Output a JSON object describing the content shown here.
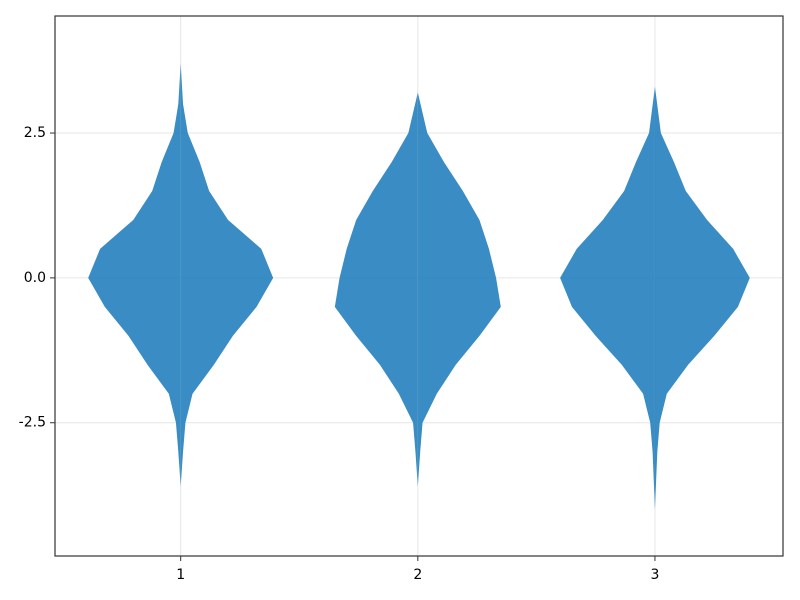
{
  "chart_data": {
    "type": "violin",
    "color": "#2e86c1",
    "grid": true,
    "xlim": [
      0.47,
      3.54
    ],
    "ylim": [
      -4.8,
      4.52
    ],
    "xticks": [
      1,
      2,
      3
    ],
    "yticks": [
      -2.5,
      {
        "value": 0,
        "label": "0.0"
      },
      2.5
    ],
    "series": [
      {
        "x": 1,
        "y": [
          3.7,
          3.0,
          2.5,
          2.0,
          1.5,
          1.0,
          0.5,
          0,
          -0.5,
          -1.0,
          -1.5,
          -2.0,
          -2.5,
          -3.0,
          -3.6
        ],
        "width": [
          0,
          0.01,
          0.03,
          0.08,
          0.12,
          0.2,
          0.34,
          0.39,
          0.32,
          0.22,
          0.14,
          0.05,
          0.02,
          0.01,
          0
        ]
      },
      {
        "x": 2,
        "y": [
          3.2,
          2.5,
          2.0,
          1.5,
          1.0,
          0.5,
          0,
          -0.5,
          -1.0,
          -1.5,
          -2.0,
          -2.5,
          -3.0,
          -3.6
        ],
        "width": [
          0,
          0.04,
          0.11,
          0.19,
          0.26,
          0.3,
          0.33,
          0.35,
          0.26,
          0.16,
          0.08,
          0.02,
          0.01,
          0
        ]
      },
      {
        "x": 3,
        "y": [
          3.3,
          2.5,
          2.0,
          1.5,
          1.0,
          0.5,
          0,
          -0.5,
          -1.0,
          -1.5,
          -2.0,
          -2.5,
          -3.0,
          -3.5,
          -4.0
        ],
        "width": [
          0,
          0.025,
          0.08,
          0.13,
          0.22,
          0.33,
          0.4,
          0.35,
          0.25,
          0.14,
          0.05,
          0.02,
          0.01,
          0.005,
          0
        ]
      }
    ]
  }
}
